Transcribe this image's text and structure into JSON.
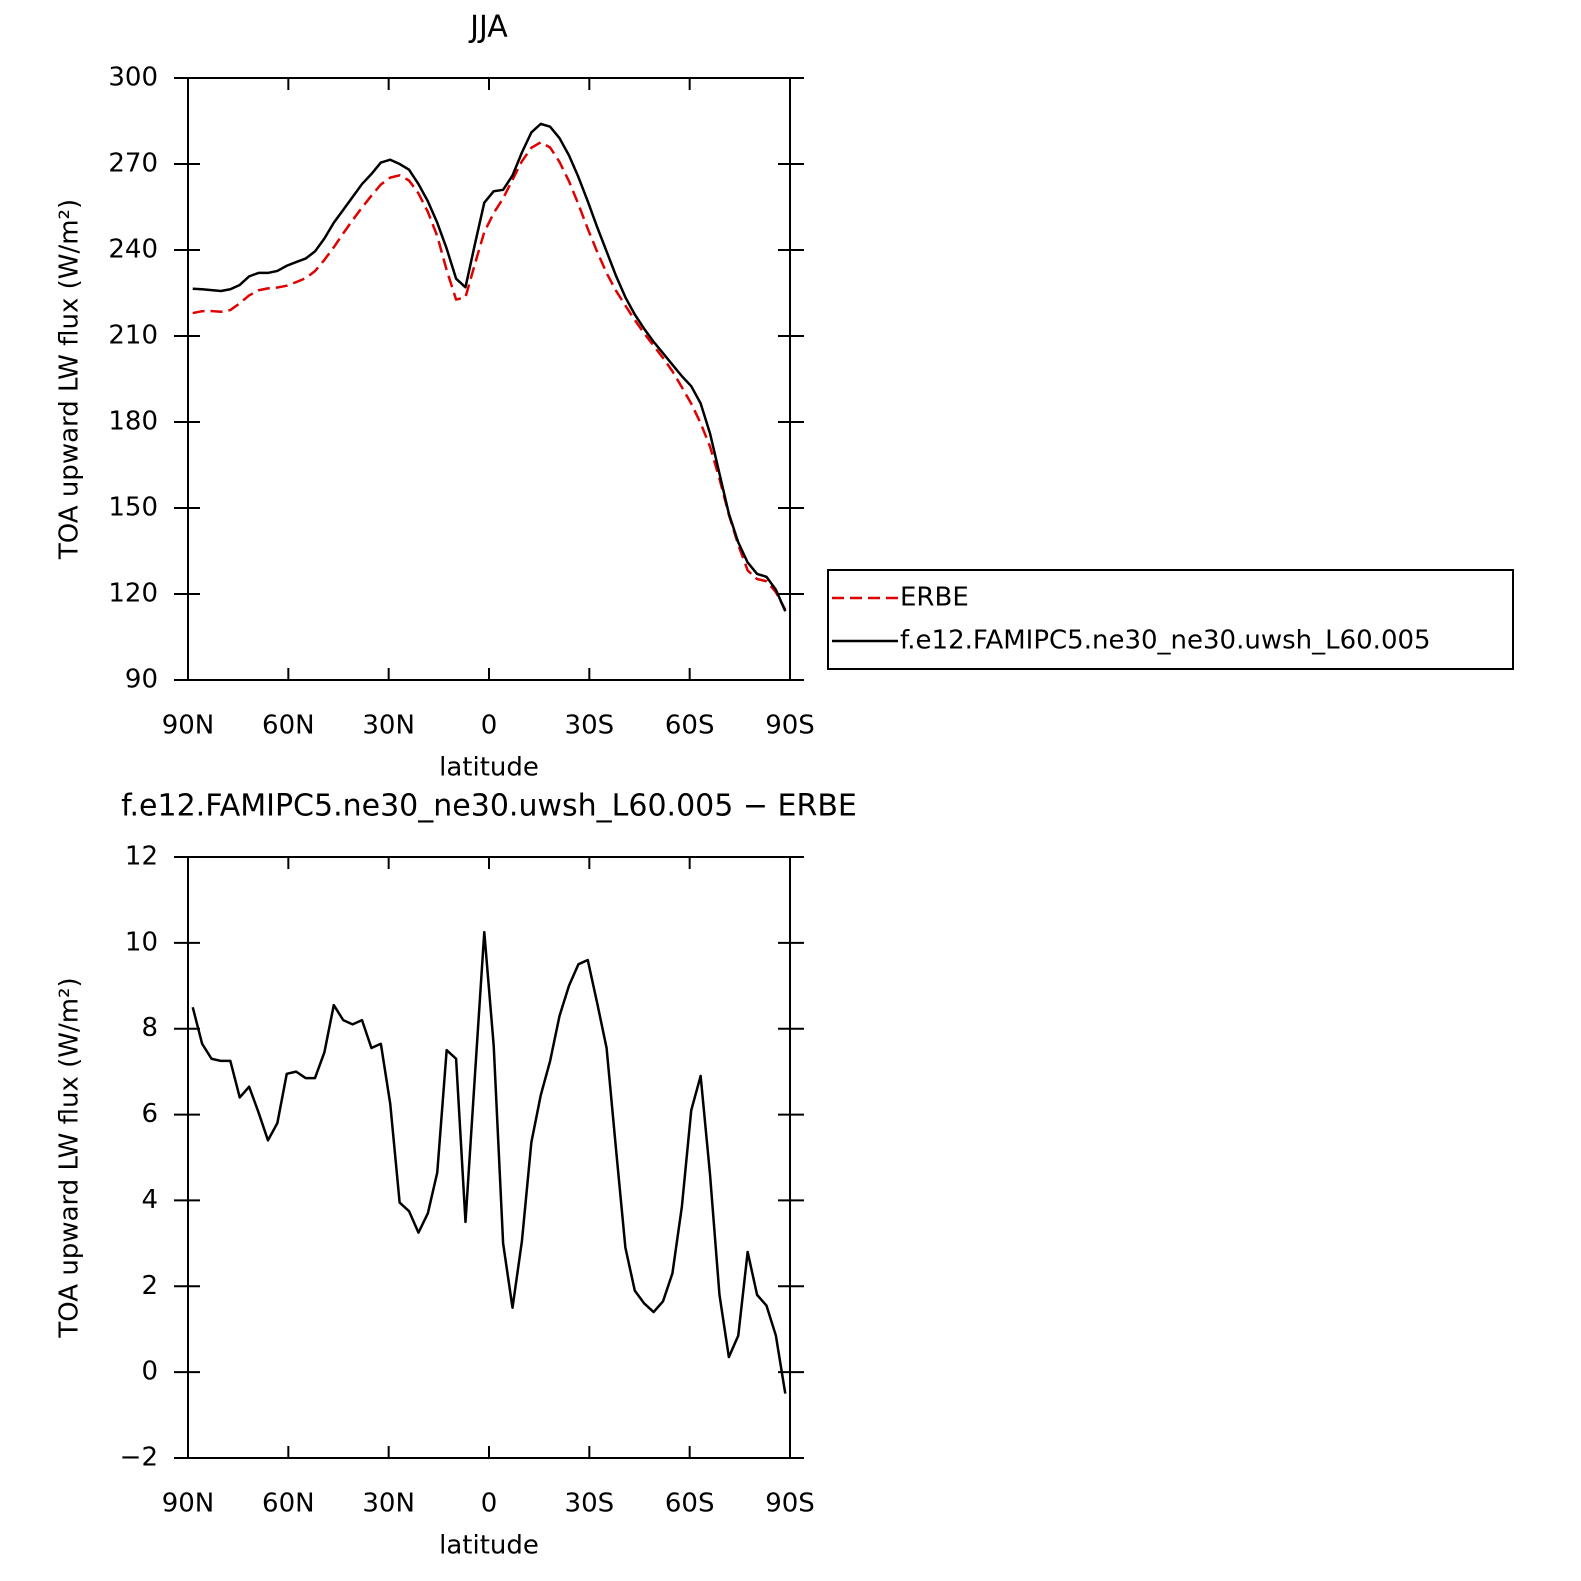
{
  "chart_data": [
    {
      "type": "line",
      "title": "JJA",
      "xlabel": "latitude",
      "ylabel": "TOA upward LW flux (W/m²)",
      "x": [
        88.59,
        85.78,
        82.97,
        80.16,
        77.34,
        74.53,
        71.72,
        68.91,
        66.09,
        63.28,
        60.47,
        57.66,
        54.84,
        52.03,
        49.22,
        46.41,
        43.59,
        40.78,
        37.97,
        35.16,
        32.34,
        29.53,
        26.72,
        23.91,
        21.09,
        18.28,
        15.47,
        12.66,
        9.84,
        7.03,
        4.22,
        1.41,
        -1.41,
        -4.22,
        -7.03,
        -9.84,
        -12.66,
        -15.47,
        -18.28,
        -21.09,
        -23.91,
        -26.72,
        -29.53,
        -32.34,
        -35.16,
        -37.97,
        -40.78,
        -43.59,
        -46.41,
        -49.22,
        -52.03,
        -54.84,
        -57.66,
        -60.47,
        -63.28,
        -66.09,
        -68.91,
        -71.72,
        -74.53,
        -77.34,
        -80.16,
        -82.97,
        -85.78,
        -88.59
      ],
      "xlim": [
        90,
        -90
      ],
      "xticks": [
        {
          "value": 90,
          "label": "90N"
        },
        {
          "value": 60,
          "label": "60N"
        },
        {
          "value": 30,
          "label": "30N"
        },
        0,
        {
          "value": -30,
          "label": "30S"
        },
        {
          "value": -60,
          "label": "60S"
        },
        {
          "value": -90,
          "label": "90S"
        }
      ],
      "ylim": [
        90,
        300
      ],
      "yticks": [
        90,
        120,
        150,
        180,
        210,
        240,
        270,
        300
      ],
      "legend": "right",
      "series": [
        {
          "name": "ERBE",
          "color": "#e00000",
          "linestyle": "dashed",
          "values": [
            218.0,
            218.65,
            218.7,
            218.45,
            219.05,
            221.4,
            224.15,
            225.95,
            226.6,
            226.9,
            227.55,
            228.8,
            230.15,
            232.65,
            236.55,
            240.95,
            245.8,
            250.4,
            254.8,
            258.95,
            262.85,
            265.25,
            266.05,
            264.25,
            259.75,
            253.3,
            244.85,
            233.0,
            222.7,
            223.5,
            235.1,
            246.25,
            252.9,
            258.0,
            264.5,
            270.95,
            275.65,
            277.55,
            275.75,
            270.7,
            264.0,
            256.0,
            247.4,
            239.4,
            231.95,
            225.8,
            220.6,
            215.6,
            210.9,
            206.6,
            202.35,
            197.7,
            192.15,
            186.4,
            179.6,
            171.4,
            160.2,
            147.65,
            137.15,
            128.2,
            125.2,
            124.45,
            120.65,
            114.5
          ]
        },
        {
          "name": "f.e12.FAMIPC5.ne30_ne30.uwsh_L60.005",
          "color": "#000000",
          "linestyle": "solid",
          "values": [
            226.5,
            226.3,
            226.0,
            225.7,
            226.3,
            227.8,
            230.8,
            232.0,
            232.0,
            232.7,
            234.5,
            235.8,
            237.0,
            239.5,
            244.0,
            249.5,
            254.0,
            258.5,
            263.0,
            266.5,
            270.5,
            271.5,
            270.0,
            268.0,
            263.0,
            257.0,
            249.5,
            240.5,
            230.0,
            227.0,
            242.0,
            256.5,
            260.5,
            261.0,
            266.0,
            274.0,
            281.0,
            284.0,
            283.0,
            279.0,
            273.0,
            265.5,
            257.0,
            248.0,
            239.5,
            231.0,
            223.5,
            217.5,
            212.5,
            208.0,
            204.0,
            200.0,
            196.0,
            192.5,
            186.5,
            176.0,
            162.0,
            148.0,
            138.0,
            131.0,
            127.0,
            126.0,
            121.5,
            114.0
          ]
        }
      ]
    },
    {
      "type": "line",
      "title": "f.e12.FAMIPC5.ne30_ne30.uwsh_L60.005 − ERBE",
      "xlabel": "latitude",
      "ylabel": "TOA upward LW flux (W/m²)",
      "x": [
        88.59,
        85.78,
        82.97,
        80.16,
        77.34,
        74.53,
        71.72,
        68.91,
        66.09,
        63.28,
        60.47,
        57.66,
        54.84,
        52.03,
        49.22,
        46.41,
        43.59,
        40.78,
        37.97,
        35.16,
        32.34,
        29.53,
        26.72,
        23.91,
        21.09,
        18.28,
        15.47,
        12.66,
        9.84,
        7.03,
        4.22,
        1.41,
        -1.41,
        -4.22,
        -7.03,
        -9.84,
        -12.66,
        -15.47,
        -18.28,
        -21.09,
        -23.91,
        -26.72,
        -29.53,
        -32.34,
        -35.16,
        -37.97,
        -40.78,
        -43.59,
        -46.41,
        -49.22,
        -52.03,
        -54.84,
        -57.66,
        -60.47,
        -63.28,
        -66.09,
        -68.91,
        -71.72,
        -74.53,
        -77.34,
        -80.16,
        -82.97,
        -85.78,
        -88.59
      ],
      "xlim": [
        90,
        -90
      ],
      "xticks": [
        {
          "value": 90,
          "label": "90N"
        },
        {
          "value": 60,
          "label": "60N"
        },
        {
          "value": 30,
          "label": "30N"
        },
        0,
        {
          "value": -30,
          "label": "30S"
        },
        {
          "value": -60,
          "label": "60S"
        },
        {
          "value": -90,
          "label": "90S"
        }
      ],
      "ylim": [
        -2,
        12
      ],
      "yticks": [
        {
          "value": -2,
          "label": "−2"
        },
        0,
        2,
        4,
        6,
        8,
        10,
        12
      ],
      "color": "#000000",
      "values": [
        8.5,
        7.65,
        7.3,
        7.25,
        7.25,
        6.4,
        6.65,
        6.05,
        5.4,
        5.8,
        6.95,
        7.0,
        6.85,
        6.85,
        7.45,
        8.55,
        8.2,
        8.1,
        8.2,
        7.55,
        7.65,
        6.25,
        3.95,
        3.75,
        3.25,
        3.7,
        4.65,
        7.5,
        7.3,
        3.5,
        6.9,
        10.25,
        7.6,
        3.0,
        1.5,
        3.05,
        5.35,
        6.45,
        7.25,
        8.3,
        9.0,
        9.5,
        9.6,
        8.6,
        7.55,
        5.2,
        2.9,
        1.9,
        1.6,
        1.4,
        1.65,
        2.3,
        3.85,
        6.1,
        6.9,
        4.6,
        1.8,
        0.35,
        0.85,
        2.8,
        1.8,
        1.55,
        0.85,
        -0.5
      ]
    }
  ]
}
